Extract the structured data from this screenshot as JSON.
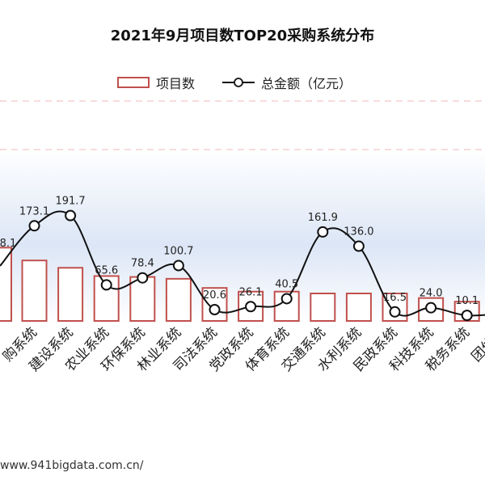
{
  "title": "2021年9月项目数TOP20采购系统分布",
  "legend": {
    "bar_label": "项目数",
    "line_label": "总金额（亿元）"
  },
  "footer_url": "www.941bigdata.com.cn/",
  "colors": {
    "bar_border": "#c0504d",
    "bar_fill": "#ffffff",
    "line": "#111111",
    "marker_fill": "#ffffff",
    "dashed_grid": "#f2b8b8",
    "band_top": "#ffffff",
    "band_mid": "#dce6f6",
    "band_bottom": "#ffffff"
  },
  "chart_data": {
    "type": "bar",
    "title": "2021年9月项目数TOP20采购系统分布",
    "categories": [
      "采购系统",
      "建设系统",
      "农业系统",
      "环保系统",
      "林业系统",
      "司法系统",
      "党政系统",
      "体育系统",
      "交通系统",
      "水利系统",
      "民政系统",
      "科技系统",
      "税务系统",
      "团体系统"
    ],
    "category_labels_visible": [
      "购系统",
      "建设系统",
      "农业系统",
      "环保系统",
      "林业系统",
      "司法系统",
      "党政系统",
      "体育系统",
      "交通系统",
      "水利系统",
      "民政系统",
      "科技系统",
      "税务系统",
      "团体系"
    ],
    "series": [
      {
        "name": "项目数",
        "type": "bar",
        "values": [
          3300,
          2900,
          2450,
          2400,
          2300,
          1800,
          1600,
          1600,
          1500,
          1500,
          1500,
          1250,
          1050,
          1050
        ]
      },
      {
        "name": "总金额（亿元）",
        "type": "line",
        "values": [
          173.1,
          191.7,
          65.6,
          78.4,
          100.7,
          20.6,
          26.1,
          40.5,
          161.9,
          136.0,
          16.5,
          24.0,
          10.1,
          15.0
        ],
        "data_labels": [
          "173.1",
          "191.7",
          "65.6",
          "78.4",
          "100.7",
          "20.6",
          "26.1",
          "40.5",
          "161.9",
          "136.0",
          "16.5",
          "24.0",
          "10.1",
          ""
        ]
      }
    ],
    "partial_left": {
      "bar_value": 4000,
      "line_value": 100.0,
      "label_fragment": "8.1"
    },
    "bar_ylim": [
      0,
      12000
    ],
    "line_ylim": [
      0,
      400
    ],
    "grid": "dashed horizontal",
    "legend_position": "top"
  }
}
